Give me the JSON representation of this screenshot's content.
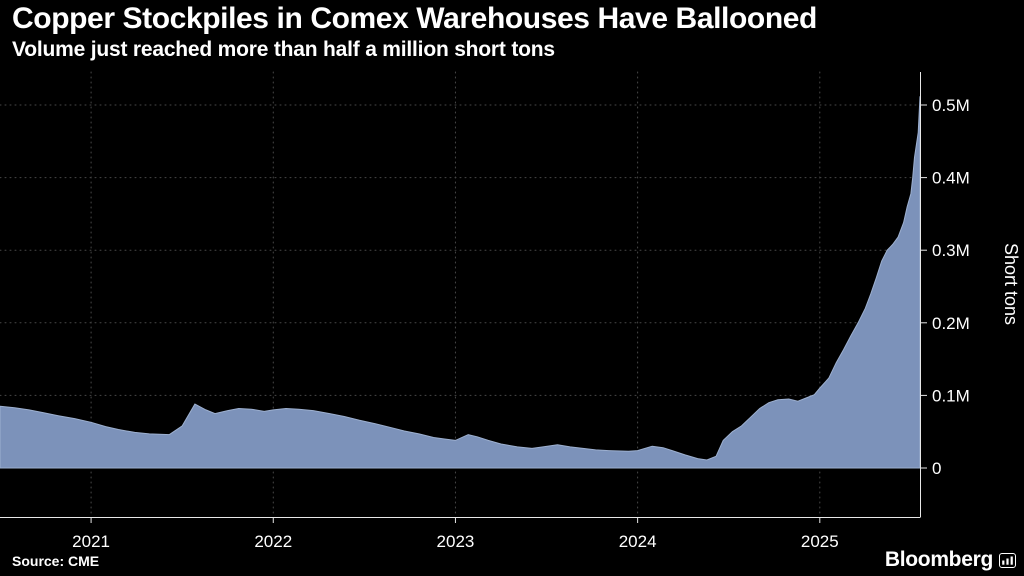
{
  "header": {
    "title": "Copper Stockpiles in Comex Warehouses Have Ballooned",
    "subtitle": "Volume just reached more than half a million short tons"
  },
  "chart_data": {
    "type": "area",
    "title": "Copper Stockpiles in Comex Warehouses Have Ballooned",
    "subtitle": "Volume just reached more than half a million short tons",
    "xlabel": "",
    "ylabel": "Short tons",
    "value_unit": "million short tons",
    "x_unit": "year (decimal)",
    "x_domain": [
      2020.5,
      2025.55
    ],
    "ylim": [
      0,
      0.52
    ],
    "grid": "dotted",
    "legend": "none",
    "y_ticks": [
      {
        "value": 0.0,
        "label": "0"
      },
      {
        "value": 0.1,
        "label": "0.1M"
      },
      {
        "value": 0.2,
        "label": "0.2M"
      },
      {
        "value": 0.3,
        "label": "0.3M"
      },
      {
        "value": 0.4,
        "label": "0.4M"
      },
      {
        "value": 0.5,
        "label": "0.5M"
      }
    ],
    "x_ticks": [
      {
        "value": 2021,
        "label": "2021"
      },
      {
        "value": 2022,
        "label": "2022"
      },
      {
        "value": 2023,
        "label": "2023"
      },
      {
        "value": 2024,
        "label": "2024"
      },
      {
        "value": 2025,
        "label": "2025"
      }
    ],
    "series": [
      {
        "name": "Comex warehouse copper stockpiles",
        "x": [
          2020.5,
          2020.58,
          2020.66,
          2020.74,
          2020.82,
          2020.91,
          2021.0,
          2021.08,
          2021.15,
          2021.24,
          2021.32,
          2021.43,
          2021.5,
          2021.57,
          2021.63,
          2021.68,
          2021.75,
          2021.81,
          2021.88,
          2021.95,
          2022.0,
          2022.07,
          2022.14,
          2022.22,
          2022.31,
          2022.39,
          2022.47,
          2022.56,
          2022.64,
          2022.72,
          2022.8,
          2022.88,
          2022.94,
          2023.0,
          2023.07,
          2023.12,
          2023.18,
          2023.25,
          2023.34,
          2023.42,
          2023.48,
          2023.56,
          2023.63,
          2023.7,
          2023.77,
          2023.84,
          2023.95,
          2024.0,
          2024.08,
          2024.14,
          2024.19,
          2024.26,
          2024.33,
          2024.38,
          2024.43,
          2024.47,
          2024.52,
          2024.57,
          2024.62,
          2024.67,
          2024.72,
          2024.77,
          2024.83,
          2024.88,
          2024.93,
          2024.97,
          2025.0,
          2025.05,
          2025.09,
          2025.13,
          2025.17,
          2025.21,
          2025.25,
          2025.28,
          2025.31,
          2025.34,
          2025.37,
          2025.4,
          2025.43,
          2025.46,
          2025.48,
          2025.5,
          2025.51,
          2025.52,
          2025.54,
          2025.55
        ],
        "values": [
          0.085,
          0.083,
          0.08,
          0.076,
          0.072,
          0.068,
          0.063,
          0.057,
          0.053,
          0.049,
          0.047,
          0.046,
          0.058,
          0.088,
          0.08,
          0.075,
          0.079,
          0.082,
          0.081,
          0.078,
          0.08,
          0.082,
          0.081,
          0.079,
          0.075,
          0.071,
          0.066,
          0.061,
          0.056,
          0.051,
          0.047,
          0.042,
          0.04,
          0.038,
          0.046,
          0.043,
          0.038,
          0.033,
          0.029,
          0.027,
          0.029,
          0.032,
          0.029,
          0.027,
          0.025,
          0.024,
          0.023,
          0.024,
          0.03,
          0.028,
          0.024,
          0.018,
          0.013,
          0.011,
          0.016,
          0.038,
          0.05,
          0.058,
          0.07,
          0.082,
          0.09,
          0.094,
          0.095,
          0.092,
          0.097,
          0.101,
          0.11,
          0.124,
          0.145,
          0.163,
          0.182,
          0.2,
          0.22,
          0.24,
          0.262,
          0.285,
          0.3,
          0.308,
          0.318,
          0.338,
          0.36,
          0.378,
          0.4,
          0.428,
          0.462,
          0.512
        ]
      }
    ],
    "colors": {
      "background": "#000000",
      "area_fill": "#7c92ba",
      "area_stroke": "#9db0d0",
      "grid": "#484848",
      "axis": "#e8e8e8",
      "text": "#ffffff"
    }
  },
  "footer": {
    "source": "Source: CME",
    "brand": "Bloomberg"
  }
}
